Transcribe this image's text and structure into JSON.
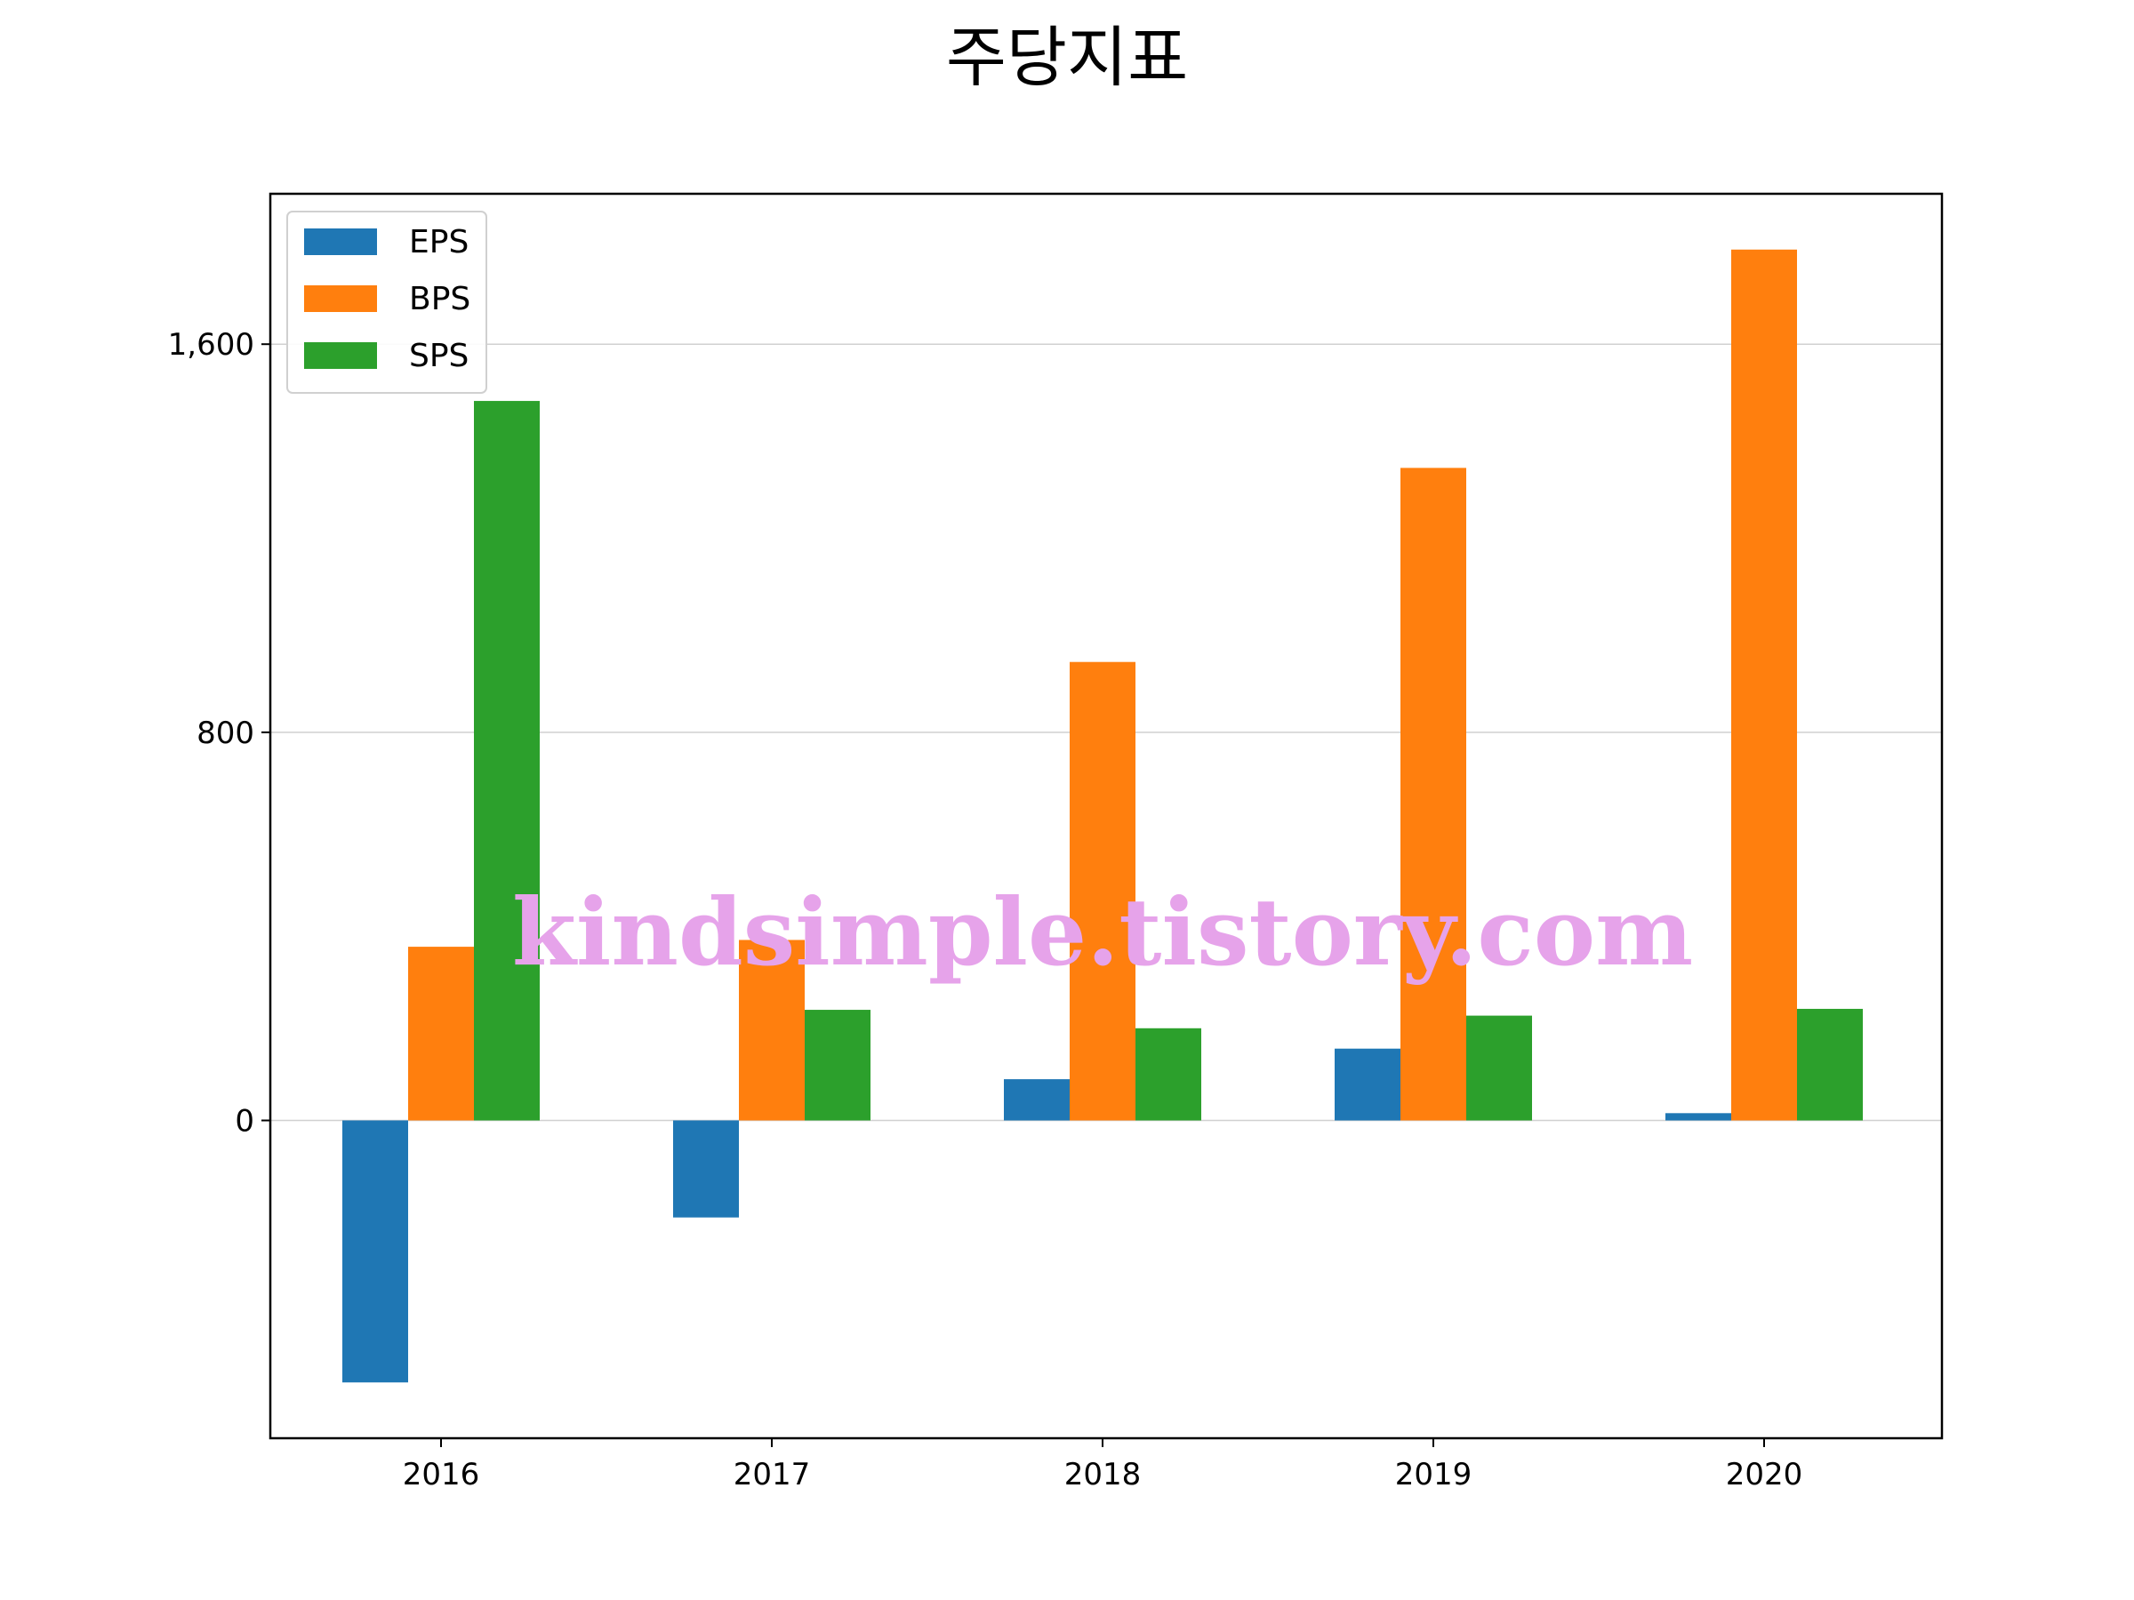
{
  "chart_data": {
    "type": "bar",
    "title": "주당지표",
    "xlabel": "",
    "ylabel": "",
    "categories": [
      "2016",
      "2017",
      "2018",
      "2019",
      "2020"
    ],
    "series": [
      {
        "name": "EPS",
        "color": "#1f77b4",
        "values": [
          -540,
          -200,
          85,
          148,
          15
        ]
      },
      {
        "name": "BPS",
        "color": "#ff7f0e",
        "values": [
          358,
          372,
          945,
          1345,
          1795
        ]
      },
      {
        "name": "SPS",
        "color": "#2ca02c",
        "values": [
          1483,
          228,
          190,
          216,
          230
        ]
      }
    ],
    "yticks": [
      0,
      800,
      1600
    ],
    "ytick_labels": [
      "0",
      "800",
      "1,600"
    ],
    "ylim": [
      -655,
      1910
    ],
    "grid": "y",
    "legend": "upper-left"
  },
  "watermark": "kindsimple.tistory.com"
}
